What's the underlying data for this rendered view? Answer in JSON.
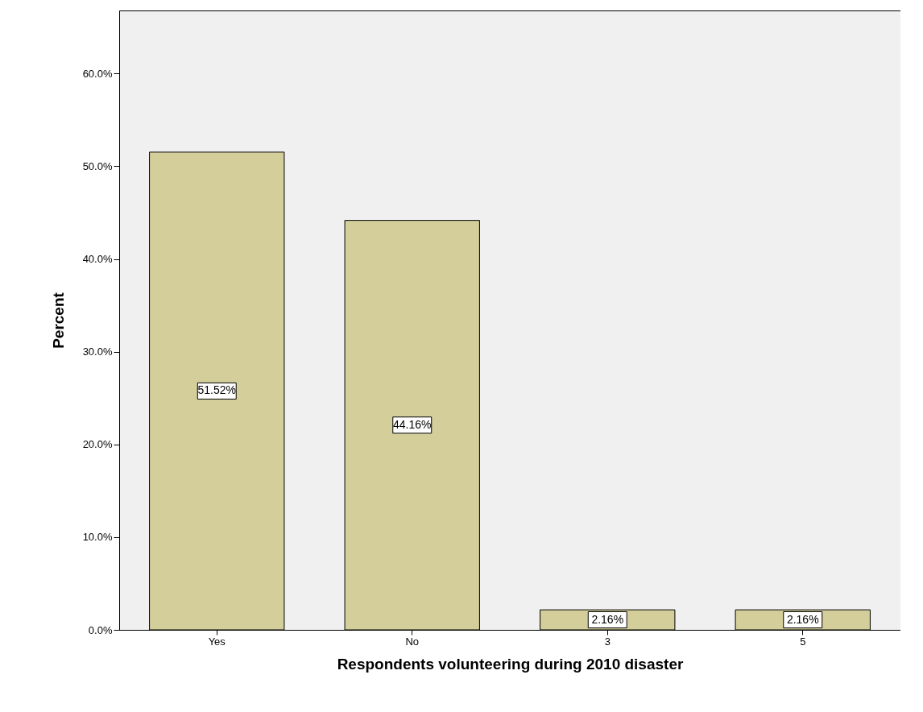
{
  "chart_data": {
    "type": "bar",
    "xlabel": "Respondents volunteering during 2010 disaster",
    "ylabel": "Percent",
    "categories": [
      "Yes",
      "No",
      "3",
      "5"
    ],
    "values": [
      51.52,
      44.16,
      2.16,
      2.16
    ],
    "value_labels": [
      "51.52%",
      "44.16%",
      "2.16%",
      "2.16%"
    ],
    "color": "#d3ce9a",
    "ylim": [
      0,
      66.8
    ],
    "yticks": [
      {
        "value": 0,
        "label": "0.0%"
      },
      {
        "value": 10,
        "label": "10.0%"
      },
      {
        "value": 20,
        "label": "20.0%"
      },
      {
        "value": 30,
        "label": "30.0%"
      },
      {
        "value": 40,
        "label": "40.0%"
      },
      {
        "value": 50,
        "label": "50.0%"
      },
      {
        "value": 60,
        "label": "60.0%"
      }
    ],
    "grid": false
  }
}
